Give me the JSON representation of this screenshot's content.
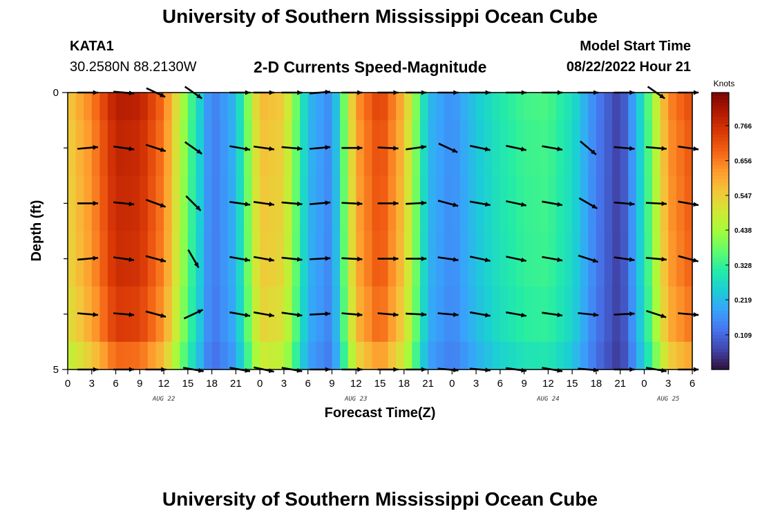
{
  "header": {
    "title": "University of Southern Mississippi Ocean Cube",
    "station": "KATA1",
    "coords": "30.2580N  88.2130W",
    "subtitle": "2-D Currents Speed-Magnitude",
    "start_label": "Model Start Time",
    "start_value": "08/22/2022 Hour 21"
  },
  "footer": {
    "title": "University of Southern Mississippi Ocean Cube"
  },
  "chart_data": {
    "type": "heatmap",
    "title": "2-D Currents Speed-Magnitude",
    "xlabel": "Forecast Time(Z)",
    "ylabel": "Depth (ft)",
    "x_ticks": [
      "0",
      "3",
      "6",
      "9",
      "12",
      "15",
      "18",
      "21",
      "0",
      "3",
      "6",
      "9",
      "12",
      "15",
      "18",
      "21",
      "0",
      "3",
      "6",
      "9",
      "12",
      "15",
      "18",
      "21",
      "0",
      "3",
      "6"
    ],
    "x_dates": [
      "AUG 22",
      "AUG 23",
      "AUG 24",
      "AUG 25"
    ],
    "y_ticks": [
      "0",
      "5"
    ],
    "ylim": [
      0,
      5
    ],
    "colorbar": {
      "unit": "Knots",
      "ticks": [
        "0.109",
        "0.219",
        "0.328",
        "0.438",
        "0.547",
        "0.656",
        "0.766"
      ],
      "range": [
        0.0,
        0.87
      ],
      "colors": [
        "#30123b",
        "#4145ab",
        "#4675ed",
        "#39a2fc",
        "#1bcfd4",
        "#24eca6",
        "#61fc6c",
        "#a4fc3b",
        "#d1e834",
        "#f3c63a",
        "#fe9b2d",
        "#f36315",
        "#d93806",
        "#b11901",
        "#7a0402"
      ]
    },
    "time_hours": [
      0,
      3,
      6,
      9,
      12,
      15,
      18,
      21,
      24,
      27,
      30,
      33,
      36,
      39,
      42,
      45,
      48,
      51,
      54,
      57,
      60,
      63,
      66,
      69,
      72,
      75,
      78
    ],
    "speed_profile": [
      0.55,
      0.65,
      0.8,
      0.79,
      0.67,
      0.38,
      0.13,
      0.22,
      0.58,
      0.55,
      0.22,
      0.15,
      0.62,
      0.74,
      0.58,
      0.22,
      0.16,
      0.24,
      0.3,
      0.34,
      0.35,
      0.28,
      0.14,
      0.05,
      0.3,
      0.64,
      0.72
    ],
    "depth_factor": [
      1.0,
      0.98,
      0.97,
      0.96,
      0.93,
      0.85
    ],
    "vectors": {
      "x_hours": [
        2.5,
        7,
        11,
        15.7,
        21.5,
        24.5,
        28,
        31.5,
        35.5,
        40,
        43.5,
        47.5,
        51.5,
        56,
        60.5,
        65,
        69.5,
        73.5,
        77.5
      ],
      "rows": [
        {
          "depth": 0,
          "dirs": [
            0,
            -5,
            -25,
            -35,
            0,
            0,
            0,
            5,
            0,
            0,
            0,
            0,
            0,
            0,
            0,
            0,
            0,
            -35,
            0
          ]
        },
        {
          "depth": 1,
          "dirs": [
            5,
            -8,
            -18,
            -35,
            -10,
            -8,
            -5,
            5,
            0,
            -3,
            8,
            -25,
            -12,
            -12,
            -10,
            -40,
            -5,
            -5,
            -8
          ]
        },
        {
          "depth": 2,
          "dirs": [
            0,
            -6,
            -20,
            -45,
            -8,
            -8,
            -5,
            5,
            -3,
            0,
            3,
            -15,
            -10,
            -12,
            -10,
            -30,
            -5,
            -3,
            -10
          ]
        },
        {
          "depth": 3,
          "dirs": [
            5,
            -8,
            -15,
            -60,
            -10,
            -10,
            -6,
            3,
            -3,
            0,
            0,
            -8,
            -12,
            -12,
            -10,
            -18,
            -8,
            -5,
            -15
          ]
        },
        {
          "depth": 4,
          "dirs": [
            -5,
            -5,
            -15,
            25,
            -10,
            -10,
            -8,
            3,
            -5,
            -5,
            -3,
            -5,
            -10,
            -10,
            -8,
            -6,
            3,
            -18,
            -5
          ]
        },
        {
          "depth": 5,
          "dirs": [
            0,
            0,
            0,
            -10,
            -10,
            -12,
            -10,
            0,
            0,
            0,
            0,
            -5,
            -5,
            -8,
            -10,
            -5,
            0,
            -10,
            0
          ]
        }
      ]
    }
  }
}
